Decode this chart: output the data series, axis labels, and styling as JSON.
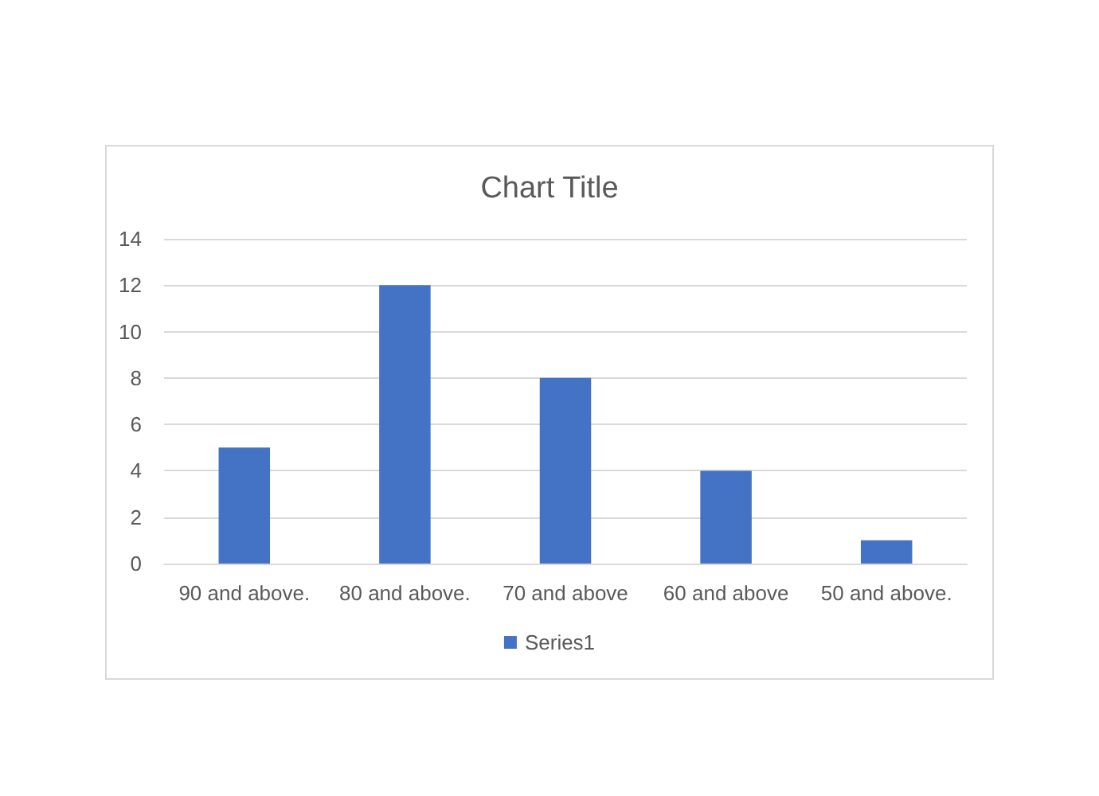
{
  "chart_data": {
    "type": "bar",
    "title": "Chart Title",
    "categories": [
      "90 and above.",
      "80 and above.",
      "70 and above",
      "60 and above",
      "50 and above."
    ],
    "series": [
      {
        "name": "Series1",
        "color": "#4472c4",
        "values": [
          5,
          12,
          8,
          4,
          1
        ]
      }
    ],
    "ylim": [
      0,
      14
    ],
    "yticks": [
      0,
      2,
      4,
      6,
      8,
      10,
      12,
      14
    ],
    "grid": "y",
    "legend": "bottom"
  }
}
